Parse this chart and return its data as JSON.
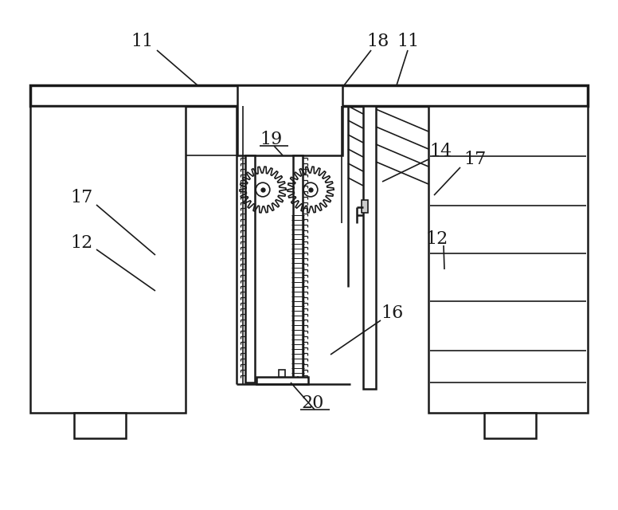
{
  "bg_color": "#ffffff",
  "line_color": "#1a1a1a",
  "lw1": 1.2,
  "lw2": 1.8,
  "lw3": 2.5,
  "fig_width": 7.76,
  "fig_height": 6.4
}
